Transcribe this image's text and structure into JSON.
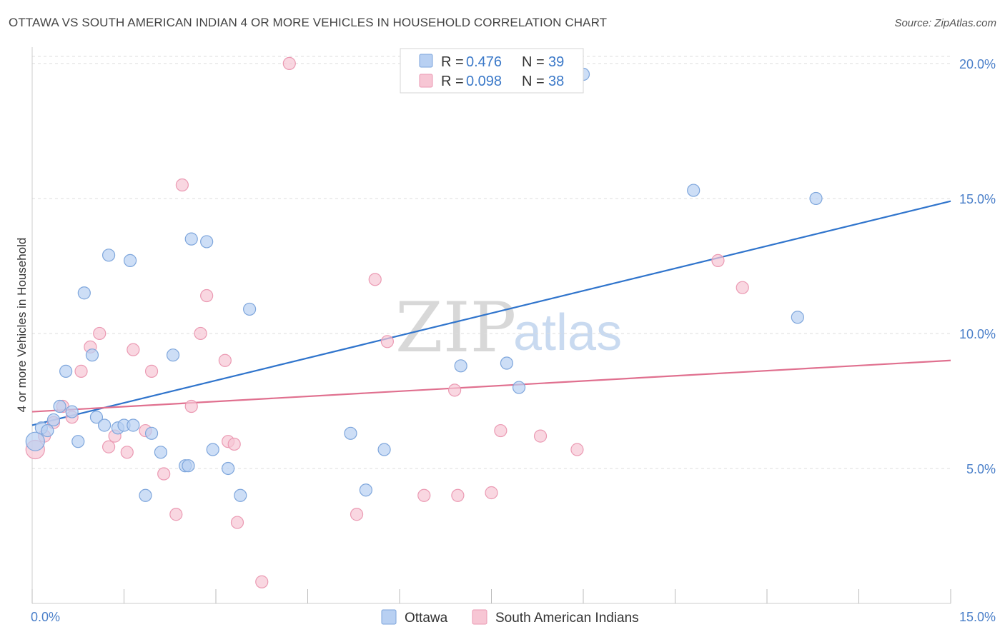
{
  "header": {
    "title": "OTTAWA VS SOUTH AMERICAN INDIAN 4 OR MORE VEHICLES IN HOUSEHOLD CORRELATION CHART",
    "source": "Source: ZipAtlas.com"
  },
  "watermark": {
    "zip": "ZIP",
    "atlas": "atlas"
  },
  "legend": {
    "rows": [
      {
        "r_label": "R = ",
        "r_value": "0.476",
        "n_label": "N = ",
        "n_value": "39"
      },
      {
        "r_label": "R = ",
        "r_value": "0.098",
        "n_label": "N = ",
        "n_value": "38"
      }
    ]
  },
  "chart_data": {
    "type": "scatter",
    "title": "OTTAWA VS SOUTH AMERICAN INDIAN 4 OR MORE VEHICLES IN HOUSEHOLD CORRELATION CHART",
    "xlabel": "",
    "ylabel": "4 or more Vehicles in Household",
    "xlim": [
      0,
      15
    ],
    "ylim": [
      0,
      20.5
    ],
    "x_ticks": [
      0,
      15
    ],
    "x_tick_labels": [
      "0.0%",
      "15.0%"
    ],
    "y_ticks": [
      5,
      10,
      15,
      20
    ],
    "y_tick_labels": [
      "5.0%",
      "10.0%",
      "15.0%",
      "20.0%"
    ],
    "grid": true,
    "legend_position": "top-center",
    "colors": {
      "ottawa_fill": "#b8d0f2",
      "ottawa_stroke": "#7ea6dc",
      "ottawa_line": "#2f74cc",
      "sai_fill": "#f7c6d4",
      "sai_stroke": "#eb9ab3",
      "sai_line": "#e0708f",
      "text_blue": "#3a78c8"
    },
    "series": [
      {
        "name": "Ottawa",
        "r": 0.476,
        "n": 39,
        "trend": {
          "x": [
            0,
            15
          ],
          "y": [
            6.6,
            14.9
          ]
        },
        "points": [
          [
            0.05,
            6.0
          ],
          [
            0.15,
            6.5
          ],
          [
            0.25,
            6.4
          ],
          [
            0.35,
            6.8
          ],
          [
            0.45,
            7.3
          ],
          [
            0.55,
            8.6
          ],
          [
            0.65,
            7.1
          ],
          [
            0.75,
            6.0
          ],
          [
            0.85,
            11.5
          ],
          [
            0.98,
            9.2
          ],
          [
            1.05,
            6.9
          ],
          [
            1.18,
            6.6
          ],
          [
            1.25,
            12.9
          ],
          [
            1.4,
            6.5
          ],
          [
            1.5,
            6.6
          ],
          [
            1.6,
            12.7
          ],
          [
            1.65,
            6.6
          ],
          [
            1.85,
            4.0
          ],
          [
            1.95,
            6.3
          ],
          [
            2.1,
            5.6
          ],
          [
            2.3,
            9.2
          ],
          [
            2.5,
            5.1
          ],
          [
            2.55,
            5.1
          ],
          [
            2.6,
            13.5
          ],
          [
            2.85,
            13.4
          ],
          [
            2.95,
            5.7
          ],
          [
            3.2,
            5.0
          ],
          [
            3.4,
            4.0
          ],
          [
            3.55,
            10.9
          ],
          [
            5.2,
            6.3
          ],
          [
            5.45,
            4.2
          ],
          [
            5.75,
            5.7
          ],
          [
            7.0,
            8.8
          ],
          [
            7.75,
            8.9
          ],
          [
            7.95,
            8.0
          ],
          [
            9.0,
            19.6
          ],
          [
            10.8,
            15.3
          ],
          [
            12.5,
            10.6
          ],
          [
            12.8,
            15.0
          ]
        ]
      },
      {
        "name": "South American Indians",
        "r": 0.098,
        "n": 38,
        "trend": {
          "x": [
            0,
            15
          ],
          "y": [
            7.1,
            9.0
          ]
        },
        "points": [
          [
            0.05,
            5.7
          ],
          [
            0.2,
            6.2
          ],
          [
            0.35,
            6.7
          ],
          [
            0.5,
            7.3
          ],
          [
            0.65,
            6.9
          ],
          [
            0.8,
            8.6
          ],
          [
            0.95,
            9.5
          ],
          [
            1.1,
            10.0
          ],
          [
            1.25,
            5.8
          ],
          [
            1.35,
            6.2
          ],
          [
            1.55,
            5.6
          ],
          [
            1.65,
            9.4
          ],
          [
            1.85,
            6.4
          ],
          [
            1.95,
            8.6
          ],
          [
            2.15,
            4.8
          ],
          [
            2.35,
            3.3
          ],
          [
            2.45,
            15.5
          ],
          [
            2.6,
            7.3
          ],
          [
            2.75,
            10.0
          ],
          [
            2.85,
            11.4
          ],
          [
            3.15,
            9.0
          ],
          [
            3.2,
            6.0
          ],
          [
            3.3,
            5.9
          ],
          [
            3.35,
            3.0
          ],
          [
            3.75,
            0.8
          ],
          [
            4.2,
            20.0
          ],
          [
            5.3,
            3.3
          ],
          [
            5.6,
            12.0
          ],
          [
            5.8,
            9.7
          ],
          [
            6.4,
            4.0
          ],
          [
            6.9,
            7.9
          ],
          [
            6.95,
            4.0
          ],
          [
            7.5,
            4.1
          ],
          [
            7.65,
            6.4
          ],
          [
            8.3,
            6.2
          ],
          [
            8.9,
            5.7
          ],
          [
            11.2,
            12.7
          ],
          [
            11.6,
            11.7
          ]
        ]
      }
    ]
  }
}
